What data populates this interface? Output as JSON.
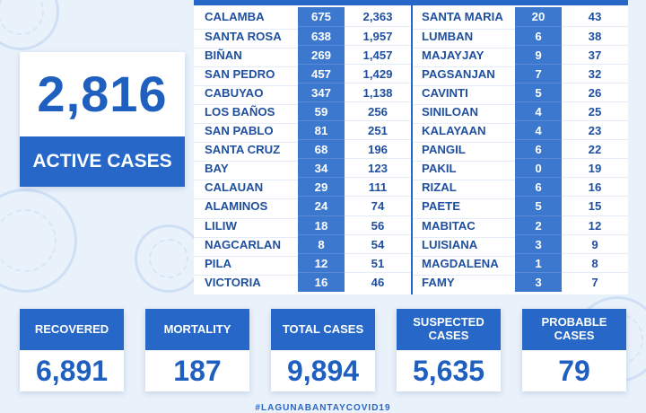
{
  "active": {
    "number": "2,816",
    "label": "ACTIVE CASES"
  },
  "table": {
    "left": [
      {
        "name": "CALAMBA",
        "a": "675",
        "b": "2,363"
      },
      {
        "name": "SANTA ROSA",
        "a": "638",
        "b": "1,957"
      },
      {
        "name": "BIÑAN",
        "a": "269",
        "b": "1,457"
      },
      {
        "name": "SAN PEDRO",
        "a": "457",
        "b": "1,429"
      },
      {
        "name": "CABUYAO",
        "a": "347",
        "b": "1,138"
      },
      {
        "name": "LOS BAÑOS",
        "a": "59",
        "b": "256"
      },
      {
        "name": "SAN PABLO",
        "a": "81",
        "b": "251"
      },
      {
        "name": "SANTA CRUZ",
        "a": "68",
        "b": "196"
      },
      {
        "name": "BAY",
        "a": "34",
        "b": "123"
      },
      {
        "name": "CALAUAN",
        "a": "29",
        "b": "111"
      },
      {
        "name": "ALAMINOS",
        "a": "24",
        "b": "74"
      },
      {
        "name": "LILIW",
        "a": "18",
        "b": "56"
      },
      {
        "name": "NAGCARLAN",
        "a": "8",
        "b": "54"
      },
      {
        "name": "PILA",
        "a": "12",
        "b": "51"
      },
      {
        "name": "VICTORIA",
        "a": "16",
        "b": "46"
      }
    ],
    "right": [
      {
        "name": "SANTA MARIA",
        "a": "20",
        "b": "43"
      },
      {
        "name": "LUMBAN",
        "a": "6",
        "b": "38"
      },
      {
        "name": "MAJAYJAY",
        "a": "9",
        "b": "37"
      },
      {
        "name": "PAGSANJAN",
        "a": "7",
        "b": "32"
      },
      {
        "name": "CAVINTI",
        "a": "5",
        "b": "26"
      },
      {
        "name": "SINILOAN",
        "a": "4",
        "b": "25"
      },
      {
        "name": "KALAYAAN",
        "a": "4",
        "b": "23"
      },
      {
        "name": "PANGIL",
        "a": "6",
        "b": "22"
      },
      {
        "name": "PAKIL",
        "a": "0",
        "b": "19"
      },
      {
        "name": "RIZAL",
        "a": "6",
        "b": "16"
      },
      {
        "name": "PAETE",
        "a": "5",
        "b": "15"
      },
      {
        "name": "MABITAC",
        "a": "2",
        "b": "12"
      },
      {
        "name": "LUISIANA",
        "a": "3",
        "b": "9"
      },
      {
        "name": "MAGDALENA",
        "a": "1",
        "b": "8"
      },
      {
        "name": "FAMY",
        "a": "3",
        "b": "7"
      }
    ]
  },
  "stats": [
    {
      "label": "RECOVERED",
      "value": "6,891"
    },
    {
      "label": "MORTALITY",
      "value": "187"
    },
    {
      "label": "TOTAL CASES",
      "value": "9,894"
    },
    {
      "label": "SUSPECTED CASES",
      "value": "5,635"
    },
    {
      "label": "PROBABLE CASES",
      "value": "79"
    }
  ],
  "hashtag": "#LAGUNABANTAYCOVID19",
  "colors": {
    "brand_blue": "#2667c8",
    "number_blue": "#1f5fbf",
    "background": "#e9f1fb"
  },
  "decor": [
    "virus-icon"
  ]
}
